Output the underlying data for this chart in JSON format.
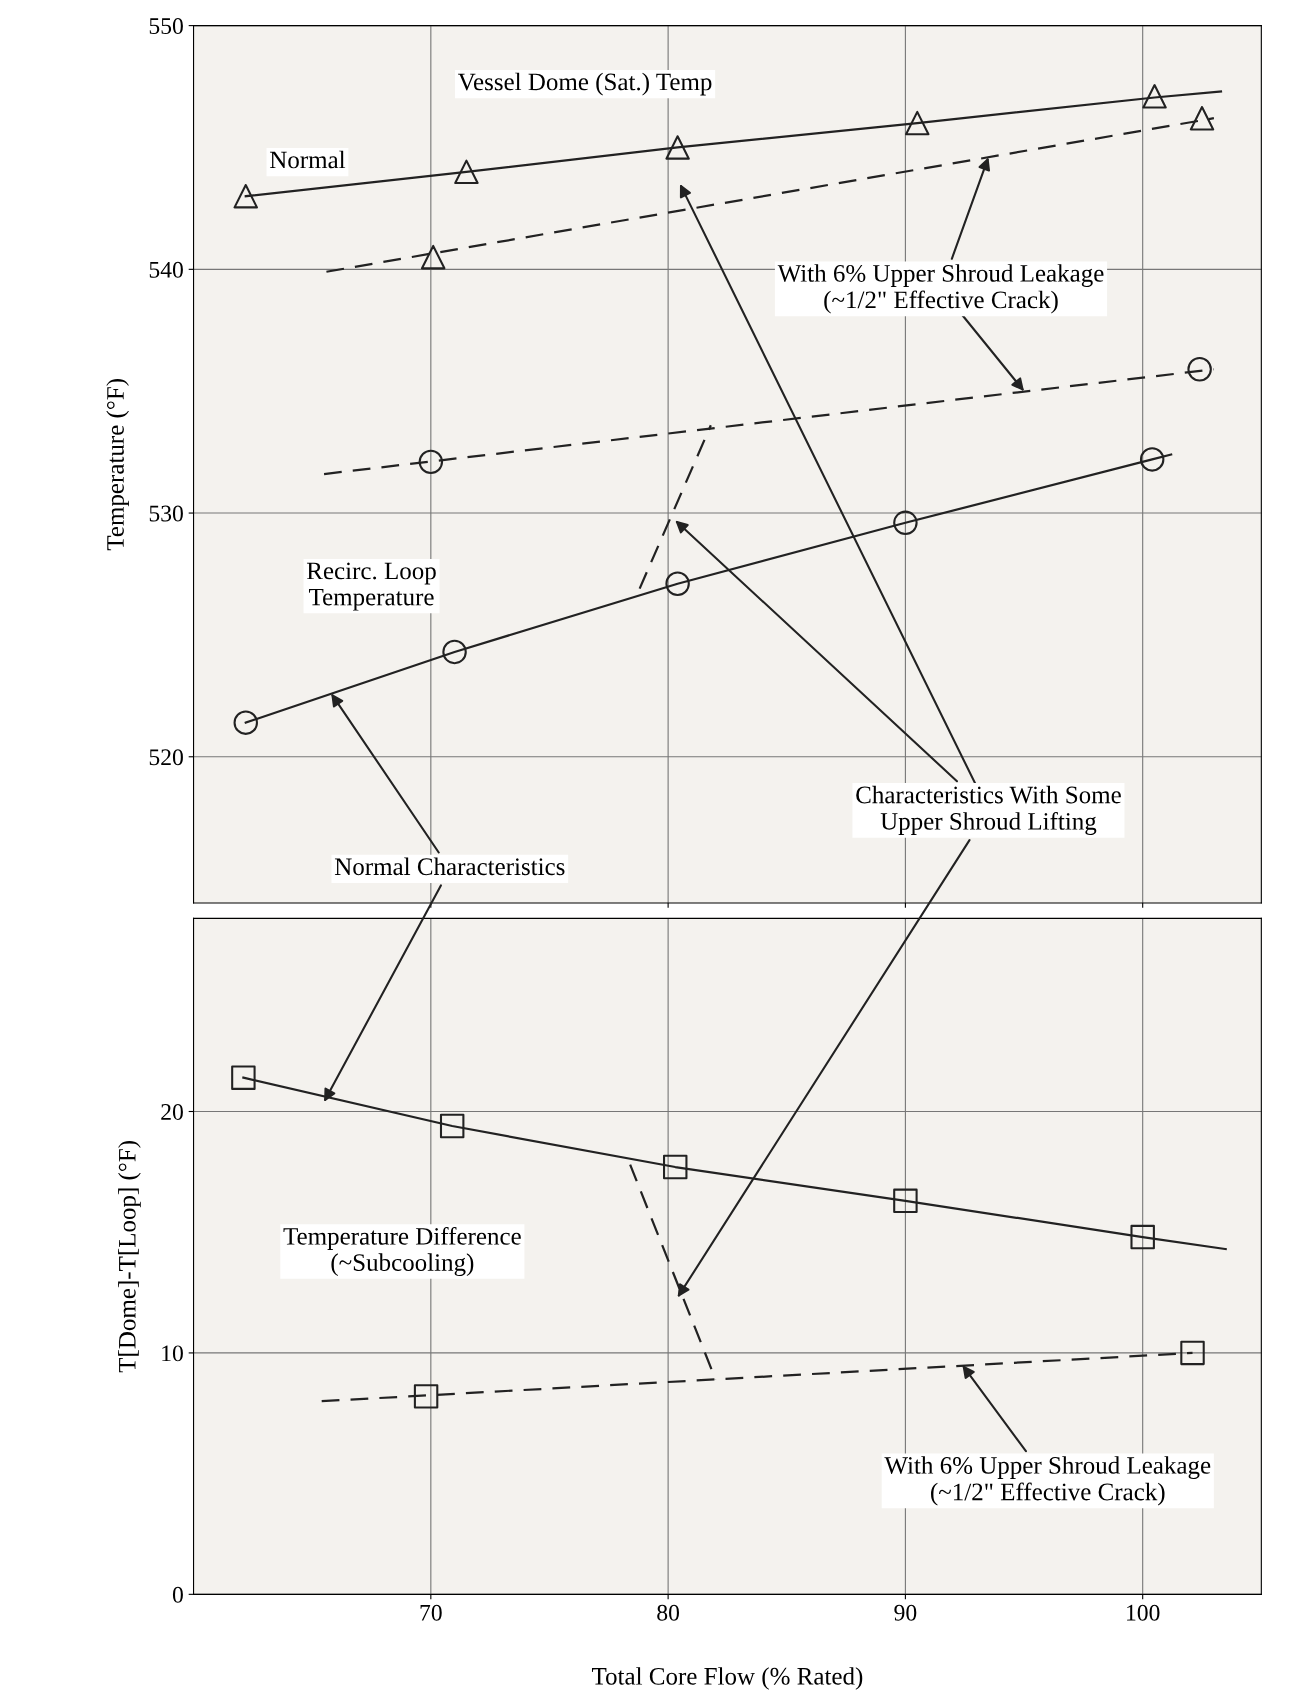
{
  "chart_data": [
    {
      "type": "line",
      "ylabel": "Temperature (°F)",
      "xlim": [
        60,
        105
      ],
      "xticks": [
        70,
        80,
        90,
        100
      ],
      "ylim": [
        514,
        550
      ],
      "yticks": [
        520,
        530,
        540,
        550
      ],
      "grid": true,
      "tick_labels": "y",
      "series": [
        {
          "color": "#222222",
          "line_style": "solid",
          "x": [
            62.2,
            71.5,
            80.4,
            90.5,
            100.5,
            103.3
          ],
          "values": [
            543.0,
            544.0,
            545.0,
            546.0,
            547.05,
            547.3
          ]
        },
        {
          "type": "scatter",
          "color": "#222222",
          "marker": "triangle",
          "x": [
            62.2,
            71.5,
            80.4,
            90.5,
            100.5
          ],
          "values": [
            543.0,
            544.0,
            545.0,
            546.0,
            547.1
          ]
        },
        {
          "color": "#222222",
          "line_style": "dashed",
          "x": [
            65.6,
            103.0
          ],
          "values": [
            539.9,
            546.2
          ]
        },
        {
          "type": "scatter",
          "color": "#222222",
          "marker": "triangle",
          "x": [
            70.1,
            102.5
          ],
          "values": [
            540.5,
            546.2
          ]
        },
        {
          "color": "#222222",
          "line_style": "dashed",
          "x": [
            65.5,
            103.0
          ],
          "values": [
            531.6,
            535.9
          ]
        },
        {
          "type": "scatter",
          "color": "#222222",
          "marker": "circle",
          "x": [
            70.0,
            102.4
          ],
          "values": [
            532.1,
            535.9
          ]
        },
        {
          "color": "#222222",
          "line_style": "solid",
          "x": [
            62.2,
            71.0,
            80.4,
            90.0,
            100.4,
            101.2
          ],
          "values": [
            521.4,
            524.3,
            527.1,
            529.6,
            532.2,
            532.4
          ]
        },
        {
          "type": "scatter",
          "color": "#222222",
          "marker": "circle",
          "x": [
            62.2,
            71.0,
            80.4,
            90.0,
            100.4
          ],
          "values": [
            521.4,
            524.3,
            527.1,
            529.6,
            532.2
          ]
        },
        {
          "color": "#222222",
          "line_style": "dashed",
          "x": [
            78.8,
            81.8
          ],
          "values": [
            526.9,
            533.6
          ]
        }
      ],
      "annotations": [
        "Vessel Dome (Sat.) Temp",
        "Normal",
        {
          "text": "With 6% Upper Shroud Leakage\n(~1/2\" Effective Crack)",
          "x": 93.5,
          "y": 544.6
        },
        "Recirc. Loop\nTemperature",
        {
          "text": "Characteristics With Some\nUpper Shroud Lifting",
          "x": 80.3,
          "y": 529.7
        },
        {
          "text": "Normal Characteristics",
          "x": 65.8,
          "y": 522.6
        }
      ]
    },
    {
      "type": "line",
      "ylabel": "T[Dome]-T[Loop] (°F)",
      "xlabel": "Total Core Flow (% Rated)",
      "xlim": [
        60,
        105
      ],
      "xticks": [
        70,
        80,
        90,
        100
      ],
      "ylim": [
        0,
        28
      ],
      "yticks": [
        0,
        10,
        20
      ],
      "grid": true,
      "series": [
        {
          "color": "#222222",
          "line_style": "solid",
          "x": [
            62.1,
            70.9,
            80.3,
            90.0,
            100.0,
            103.5
          ],
          "values": [
            21.4,
            19.4,
            17.7,
            16.3,
            14.8,
            14.3
          ]
        },
        {
          "type": "scatter",
          "color": "#222222",
          "marker": "square",
          "x": [
            62.1,
            70.9,
            80.3,
            90.0,
            100.0
          ],
          "values": [
            21.4,
            19.4,
            17.7,
            16.3,
            14.8
          ]
        },
        {
          "color": "#222222",
          "line_style": "dashed",
          "x": [
            65.4,
            102.1
          ],
          "values": [
            8.0,
            10.0
          ]
        },
        {
          "type": "scatter",
          "color": "#222222",
          "marker": "square",
          "x": [
            69.8,
            102.1
          ],
          "values": [
            8.2,
            10.0
          ]
        },
        {
          "color": "#222222",
          "line_style": "dashed",
          "x": [
            78.4,
            82.0
          ],
          "values": [
            17.8,
            8.9
          ]
        }
      ],
      "annotations": [
        "Temperature Difference\n(~Subcooling)",
        {
          "text": "With 6% Upper Shroud Leakage\n(~1/2\" Effective Crack)",
          "x": 92.4,
          "y": 9.5
        }
      ]
    }
  ]
}
